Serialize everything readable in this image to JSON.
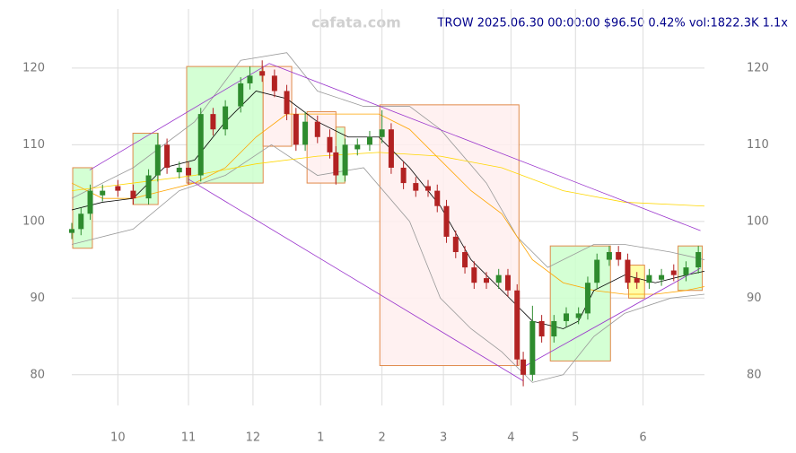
{
  "chart_data": {
    "type": "candlestick",
    "header": "TROW 2025.06.30 00:00:00 $96.50 0.42% vol:1822.3K 1.1x",
    "watermark": "cafata.com",
    "xlim": [
      0,
      206
    ],
    "ylim": [
      76,
      127.7
    ],
    "xticks": [
      {
        "value": 15,
        "label": "10"
      },
      {
        "value": 38,
        "label": "11"
      },
      {
        "value": 59,
        "label": "12"
      },
      {
        "value": 81,
        "label": "1"
      },
      {
        "value": 101,
        "label": "2"
      },
      {
        "value": 121,
        "label": "3"
      },
      {
        "value": 143,
        "label": "4"
      },
      {
        "value": 164,
        "label": "5"
      },
      {
        "value": 186,
        "label": "6"
      }
    ],
    "yticks": [
      80,
      90,
      100,
      110,
      120
    ],
    "grid": true,
    "up_color": "#2e8b2e",
    "down_color": "#b22222",
    "x": [
      0,
      3,
      6,
      10,
      15,
      20,
      25,
      28,
      31,
      35,
      38,
      42,
      46,
      50,
      55,
      58,
      62,
      66,
      70,
      73,
      76,
      80,
      84,
      86,
      89,
      93,
      97,
      101,
      104,
      108,
      112,
      116,
      119,
      122,
      125,
      128,
      131,
      135,
      139,
      142,
      145,
      147,
      150,
      153,
      157,
      161,
      165,
      168,
      171,
      175,
      178,
      181,
      184,
      188,
      192,
      196,
      200,
      204
    ],
    "open": [
      98.5,
      99,
      101,
      103.4,
      104.6,
      104,
      103,
      106,
      110,
      106.4,
      107,
      106,
      114,
      112,
      115,
      118,
      119.6,
      119,
      117,
      114,
      110,
      113,
      111,
      109,
      106,
      109.4,
      110,
      111,
      112,
      107,
      105,
      104.6,
      104,
      102,
      98,
      96,
      94,
      92.6,
      92,
      93,
      91,
      82,
      80,
      87,
      85,
      87,
      87.4,
      88,
      92,
      95,
      96,
      95,
      92.6,
      92,
      92.4,
      93.6,
      93,
      94
    ],
    "high": [
      99.8,
      101.8,
      104.8,
      104.8,
      105.4,
      104.8,
      106.8,
      111.5,
      110.8,
      107.8,
      107.8,
      114.8,
      114.8,
      115.8,
      118.8,
      120.2,
      121,
      119.8,
      117.8,
      114.8,
      114.3,
      113.8,
      112,
      109.8,
      110.8,
      110.8,
      111.8,
      114.5,
      112.8,
      107.8,
      105.8,
      105.4,
      104.8,
      102.8,
      98.8,
      96.8,
      94.8,
      93.4,
      93.8,
      93.8,
      91.8,
      83,
      89,
      87.8,
      87.8,
      88.8,
      88.8,
      92.8,
      95.8,
      96.8,
      96.8,
      95.8,
      93.4,
      93.8,
      93.8,
      94.4,
      94.8,
      96.8
    ],
    "low": [
      97.7,
      98.2,
      100.2,
      102.6,
      103.2,
      102.2,
      102.2,
      105.2,
      106.2,
      105.6,
      104.8,
      105.2,
      111.2,
      111.2,
      114.2,
      117.2,
      118.2,
      116.2,
      113.2,
      109.2,
      109.2,
      110.2,
      108.2,
      104.8,
      105.2,
      108.6,
      109.2,
      110.2,
      106.2,
      104.2,
      103.2,
      103.2,
      101.2,
      97.2,
      95.2,
      93.2,
      91.2,
      91.2,
      91.2,
      90.2,
      81.2,
      78.5,
      79.2,
      84.2,
      84.2,
      86.2,
      86.6,
      87.2,
      91.2,
      94.2,
      94.2,
      91.2,
      91.2,
      91.2,
      91.6,
      92.2,
      92.2,
      93.2
    ],
    "close": [
      99,
      101,
      104,
      104,
      104,
      103,
      106,
      110,
      107,
      107,
      106,
      114,
      112,
      115,
      118,
      119,
      119,
      117,
      114,
      110,
      113,
      111,
      109,
      106,
      110,
      110,
      111,
      112,
      107,
      105,
      104,
      104,
      102,
      98,
      96,
      94,
      92,
      92,
      93,
      91,
      82,
      80,
      87,
      85,
      87,
      88,
      88,
      92,
      95,
      96,
      95,
      92,
      92,
      93,
      93,
      93,
      94,
      96
    ],
    "zones": [
      {
        "color": "#ccffcc",
        "x": [
          0.3,
          6.7
        ],
        "y": [
          96.5,
          107
        ]
      },
      {
        "color": "#ccffcc",
        "x": [
          19.9,
          28.1
        ],
        "y": [
          102.2,
          111.5
        ]
      },
      {
        "color": "#ccffcc",
        "x": [
          37.4,
          62.3
        ],
        "y": [
          105,
          120.2
        ]
      },
      {
        "color": "#ffeeee",
        "x": [
          62.3,
          71.6
        ],
        "y": [
          109.8,
          120.2
        ]
      },
      {
        "color": "#ffeeee",
        "x": [
          76.6,
          86
        ],
        "y": [
          105,
          114.3
        ]
      },
      {
        "color": "#ccffcc",
        "x": [
          86,
          88.9
        ],
        "y": [
          105,
          112.3
        ]
      },
      {
        "color": "#ffeeee",
        "x": [
          100.3,
          145.6
        ],
        "y": [
          81.2,
          115.2
        ]
      },
      {
        "color": "#ccffcc",
        "x": [
          155.8,
          175.4
        ],
        "y": [
          81.8,
          96.8
        ]
      },
      {
        "color": "#ffff99",
        "x": [
          181.3,
          186.5
        ],
        "y": [
          90,
          94.3
        ]
      },
      {
        "color": "#ccffcc",
        "x": [
          197.4,
          205.3
        ],
        "y": [
          91,
          96.8
        ]
      }
    ],
    "overlays": [
      {
        "color": "#999999",
        "x": [
          0,
          20,
          40,
          55,
          70,
          80,
          95,
          110,
          120,
          135,
          145,
          155,
          170,
          180,
          195,
          206
        ],
        "values": [
          103,
          107,
          113,
          121,
          122,
          117,
          115,
          115,
          112,
          105,
          98,
          94,
          97,
          97,
          96,
          95
        ]
      },
      {
        "color": "#999999",
        "x": [
          0,
          20,
          35,
          50,
          65,
          80,
          95,
          110,
          120,
          130,
          140,
          150,
          160,
          170,
          180,
          195,
          206
        ],
        "values": [
          97,
          99,
          104,
          106,
          110,
          106,
          107,
          100,
          90,
          86,
          83,
          79,
          80,
          85,
          88,
          90,
          90.5
        ]
      },
      {
        "color": "#ffd700",
        "x": [
          0,
          20,
          40,
          60,
          80,
          100,
          120,
          140,
          160,
          180,
          206
        ],
        "values": [
          104,
          105,
          106,
          107.5,
          108.5,
          109,
          108.5,
          107,
          104,
          102.5,
          102
        ]
      },
      {
        "color": "#ffa500",
        "x": [
          0,
          10,
          20,
          30,
          40,
          50,
          60,
          70,
          80,
          90,
          100,
          110,
          120,
          130,
          140,
          150,
          160,
          170,
          180,
          190,
          200,
          206
        ],
        "values": [
          105,
          103,
          103,
          104,
          105,
          107,
          111,
          114,
          114,
          114,
          114,
          112,
          108,
          104,
          101,
          95,
          92,
          91,
          90.5,
          90.5,
          91,
          91.5
        ]
      },
      {
        "color": "#000000",
        "x": [
          0,
          10,
          20,
          30,
          40,
          50,
          60,
          70,
          80,
          90,
          100,
          110,
          120,
          130,
          140,
          145,
          150,
          160,
          165,
          170,
          180,
          190,
          200,
          206
        ],
        "values": [
          101.5,
          102.5,
          103,
          107,
          108,
          113,
          117,
          116,
          113,
          111,
          111,
          107,
          102,
          95,
          91,
          89,
          87,
          86,
          87,
          91,
          93,
          92,
          93,
          93.5
        ]
      },
      {
        "color": "#9932cc",
        "x": [
          5.8,
          64.3
        ],
        "values": [
          106.7,
          120.6
        ]
      },
      {
        "color": "#9932cc",
        "x": [
          64.3,
          204.7
        ],
        "values": [
          120.6,
          98.8
        ]
      },
      {
        "color": "#9932cc",
        "x": [
          38,
          147
        ],
        "values": [
          105.5,
          79.2
        ]
      },
      {
        "color": "#9932cc",
        "x": [
          147,
          204.7
        ],
        "values": [
          81,
          93.9
        ]
      }
    ]
  }
}
